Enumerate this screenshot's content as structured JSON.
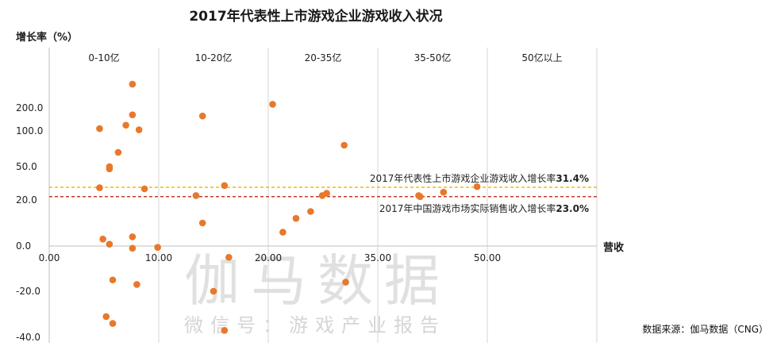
{
  "chart_data": {
    "type": "scatter",
    "title": "2017年代表性上市游戏企业游戏收入状况",
    "xlabel": "营收",
    "ylabel": "增长率（%）",
    "x_ticks": [
      "0.00",
      "10.00",
      "20.00",
      "35.00",
      "50.00"
    ],
    "y_ticks": [
      "200.0",
      "100.0",
      "50.0",
      "20.0",
      "0.0",
      "-20.0",
      "-40.0"
    ],
    "bands": [
      "0-10亿",
      "10-20亿",
      "20-35亿",
      "35-50亿",
      "50亿以上"
    ],
    "reference_lines": [
      {
        "label": "2017年代表性上市游戏企业游戏收入增长率",
        "value_label": "31.4%",
        "y": 31.4,
        "color": "#f5b800"
      },
      {
        "label": "2017年中国游戏市场实际销售收入增长率",
        "value_label": "23.0%",
        "y": 23.0,
        "color": "#c0392b"
      }
    ],
    "points": [
      {
        "x": 7.6,
        "y": 330
      },
      {
        "x": 4.6,
        "y": 110
      },
      {
        "x": 7.0,
        "y": 125
      },
      {
        "x": 7.6,
        "y": 170
      },
      {
        "x": 8.2,
        "y": 105
      },
      {
        "x": 6.3,
        "y": 70
      },
      {
        "x": 5.5,
        "y": 50
      },
      {
        "x": 5.5,
        "y": 48
      },
      {
        "x": 4.6,
        "y": 31
      },
      {
        "x": 8.7,
        "y": 30
      },
      {
        "x": 4.9,
        "y": 3
      },
      {
        "x": 7.6,
        "y": 4
      },
      {
        "x": 5.5,
        "y": 0.8
      },
      {
        "x": 7.6,
        "y": -1
      },
      {
        "x": 9.9,
        "y": -0.6
      },
      {
        "x": 5.8,
        "y": -15
      },
      {
        "x": 8.0,
        "y": -17
      },
      {
        "x": 5.2,
        "y": -31
      },
      {
        "x": 5.8,
        "y": -34
      },
      {
        "x": 13.4,
        "y": 24
      },
      {
        "x": 14.0,
        "y": 165
      },
      {
        "x": 14.0,
        "y": 10
      },
      {
        "x": 16.0,
        "y": 33
      },
      {
        "x": 16.4,
        "y": -5
      },
      {
        "x": 15.0,
        "y": -20
      },
      {
        "x": 16.0,
        "y": -37
      },
      {
        "x": 20.6,
        "y": 220
      },
      {
        "x": 22.0,
        "y": 6
      },
      {
        "x": 23.8,
        "y": 12
      },
      {
        "x": 25.8,
        "y": 15
      },
      {
        "x": 27.4,
        "y": 24
      },
      {
        "x": 28.0,
        "y": 26
      },
      {
        "x": 30.4,
        "y": 80
      },
      {
        "x": 30.6,
        "y": -16
      },
      {
        "x": 40.6,
        "y": 24
      },
      {
        "x": 40.8,
        "y": 23
      },
      {
        "x": 44.0,
        "y": 27
      },
      {
        "x": 48.6,
        "y": 32
      }
    ],
    "color": "#e8782a",
    "grid": false
  },
  "watermark": {
    "main": "伽马数据",
    "sub": "微信号：游戏产业报告"
  },
  "source": "数据来源：伽马数据（CNG）"
}
